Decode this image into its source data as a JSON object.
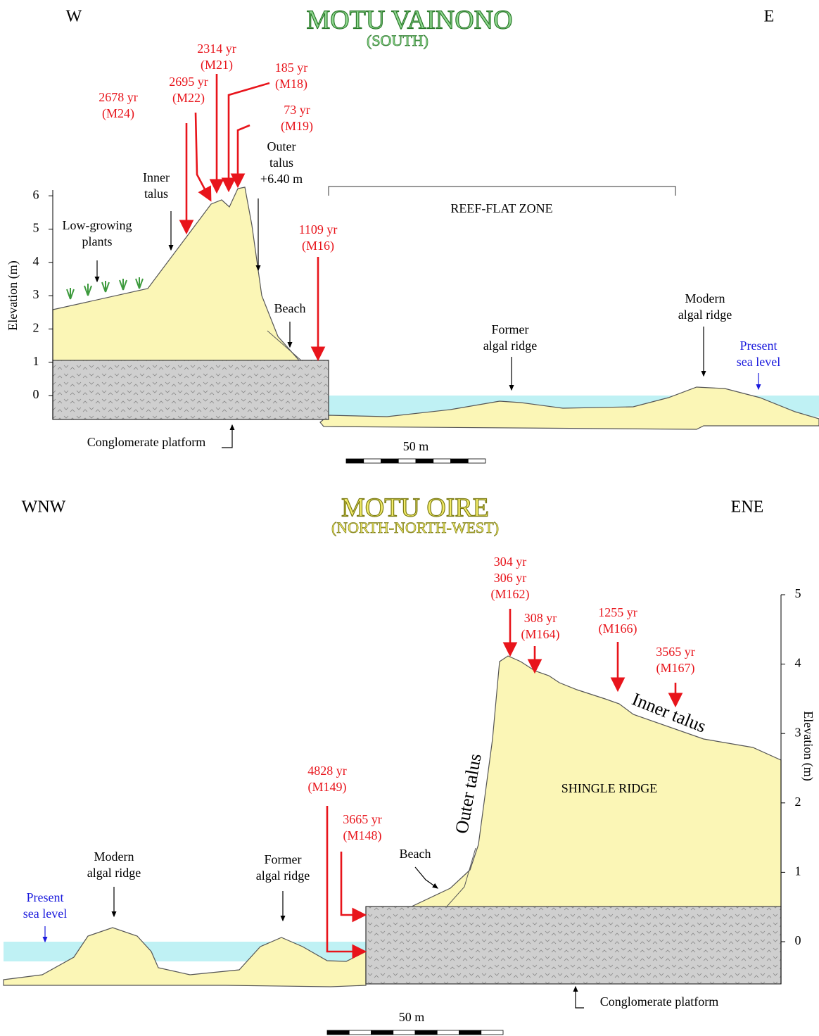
{
  "top": {
    "title": "MOTU VAINONO",
    "subtitle": "(SOUTH)",
    "west": "W",
    "east": "E",
    "y_axis_label": "Elevation (m)",
    "yticks": [
      0,
      1,
      2,
      3,
      4,
      5,
      6
    ],
    "dates": [
      [
        "2678 yr",
        "(M24)"
      ],
      [
        "2695 yr",
        "(M22)"
      ],
      [
        "2314 yr",
        "(M21)"
      ],
      [
        "185 yr",
        "(M18)"
      ],
      [
        "73 yr",
        "(M19)"
      ],
      [
        "1109 yr",
        "(M16)"
      ]
    ],
    "labels": {
      "plants": [
        "Low-growing",
        "plants"
      ],
      "inner_talus": [
        "Inner",
        "talus"
      ],
      "outer_talus": [
        "Outer",
        "talus",
        "+6.40 m"
      ],
      "beach": "Beach",
      "former_ridge": [
        "Former",
        "algal ridge"
      ],
      "modern_ridge": [
        "Modern",
        "algal ridge"
      ],
      "sea_level": [
        "Present",
        "sea level"
      ],
      "zone": "REEF-FLAT ZONE",
      "platform": "Conglomerate platform"
    },
    "scale": "50 m"
  },
  "bottom": {
    "title": "MOTU OIRE",
    "subtitle": "(NORTH-NORTH-WEST)",
    "west": "WNW",
    "east": "ENE",
    "y_axis_label": "Elevation (m)",
    "yticks": [
      0,
      1,
      2,
      3,
      4,
      5
    ],
    "dates": [
      [
        "304 yr",
        "306 yr",
        "(M162)"
      ],
      [
        "308 yr",
        "(M164)"
      ],
      [
        "1255 yr",
        "(M166)"
      ],
      [
        "3565 yr",
        "(M167)"
      ],
      [
        "4828 yr",
        "(M149)"
      ],
      [
        "3665 yr",
        "(M148)"
      ]
    ],
    "labels": {
      "modern_ridge": [
        "Modern",
        "algal ridge"
      ],
      "former_ridge": [
        "Former",
        "algal ridge"
      ],
      "sea_level": [
        "Present",
        "sea level"
      ],
      "beach": "Beach",
      "outer_talus": "Outer talus",
      "inner_talus": "Inner talus",
      "shingle": "SHINGLE RIDGE",
      "platform": "Conglomerate platform"
    },
    "scale": "50 m"
  }
}
